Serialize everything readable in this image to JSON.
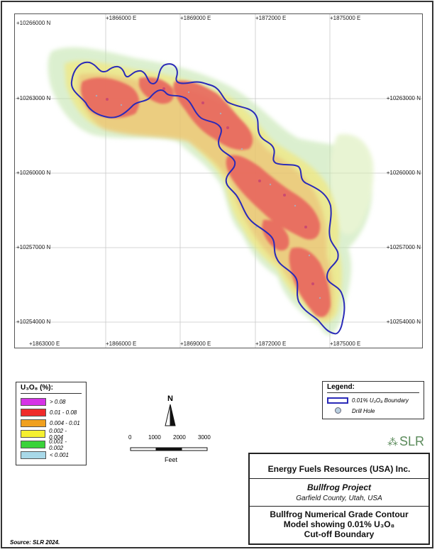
{
  "map": {
    "easting_labels": [
      "+1863000 E",
      "+1866000 E",
      "+1869000 E",
      "+1872000 E",
      "+1875000 E"
    ],
    "northing_labels": [
      "+10266000 N",
      "+10263000 N",
      "+10260000 N",
      "+10257000 N",
      "+10254000 N"
    ],
    "right_northing_labels": [
      "+10263000 N",
      "+10260000 N",
      "+10257000 N",
      "+10254000 N"
    ]
  },
  "grade_legend": {
    "title": "U₃O₈ (%):",
    "items": [
      {
        "label": "> 0.08",
        "color": "#d633e6"
      },
      {
        "label": "0.01 - 0.08",
        "color": "#ef2a2a"
      },
      {
        "label": "0.004 - 0.01",
        "color": "#f0a020"
      },
      {
        "label": "0.002 - 0.004",
        "color": "#f5f030"
      },
      {
        "label": "0.001 - 0.002",
        "color": "#3ad33a"
      },
      {
        "label": "< 0.001",
        "color": "#a8d8e8"
      }
    ]
  },
  "legend": {
    "title": "Legend:",
    "boundary_label": "0.01% U₃O₈ Boundary",
    "drill_label": "Drill Hole",
    "boundary_color": "#2a2ab8"
  },
  "north_arrow": {
    "label": "N"
  },
  "scale_bar": {
    "ticks": [
      "0",
      "1000",
      "2000",
      "3000"
    ],
    "unit": "Feet"
  },
  "logo": {
    "text": "SLR"
  },
  "title_block": {
    "company": "Energy Fuels Resources (USA) Inc.",
    "project": "Bullfrog Project",
    "location": "Garfield County, Utah, USA",
    "figure_title_1": "Bullfrog Numerical Grade Contour",
    "figure_title_2": "Model showing 0.01% U₃O₈",
    "figure_title_3": "Cut-off Boundary"
  },
  "source": "Source:  SLR 2024."
}
